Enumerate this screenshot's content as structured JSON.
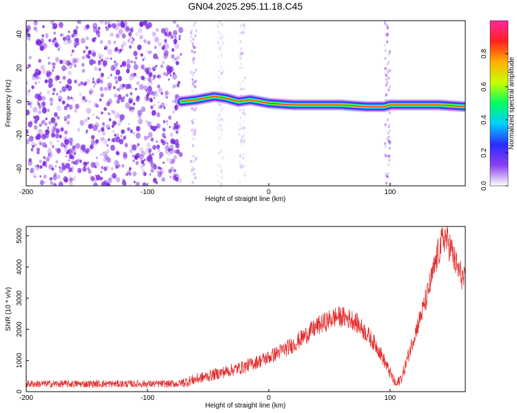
{
  "title": "GN04.2025.295.11.18.C45",
  "colors": {
    "noise": "#7a28e0",
    "line": "#e23030",
    "axis": "#000000"
  },
  "chart_data": [
    {
      "type": "heatmap",
      "xlabel": "Height of straight line (km)",
      "ylabel": "Frequency (Hz)",
      "xlim": [
        -200,
        162
      ],
      "ylim": [
        -50,
        48
      ],
      "xticks": [
        "-200",
        "-100",
        "0",
        "100"
      ],
      "yticks": [
        "40",
        "20",
        "0",
        "-20",
        "-40"
      ],
      "colorbar": {
        "label": "Normalized spectral amplitude",
        "range": [
          0,
          1
        ],
        "ticks": [
          "0.0",
          "0.2",
          "0.4",
          "0.6",
          "0.8"
        ],
        "colors": [
          "#ffffff",
          "#8a3ff0",
          "#2b2bff",
          "#00d0ff",
          "#00ff60",
          "#c8ff00",
          "#ffb000",
          "#ff2020",
          "#ff2aa0"
        ]
      },
      "noise_region_x": [
        -200,
        -72
      ],
      "signal_track": [
        {
          "x": -72,
          "f": 0
        },
        {
          "x": -60,
          "f": 1
        },
        {
          "x": -45,
          "f": 3
        },
        {
          "x": -35,
          "f": 2
        },
        {
          "x": -25,
          "f": 0
        },
        {
          "x": -15,
          "f": 1
        },
        {
          "x": 0,
          "f": -1
        },
        {
          "x": 20,
          "f": -2
        },
        {
          "x": 40,
          "f": -2
        },
        {
          "x": 60,
          "f": -2
        },
        {
          "x": 80,
          "f": -3
        },
        {
          "x": 95,
          "f": -3
        },
        {
          "x": 100,
          "f": -2
        },
        {
          "x": 120,
          "f": -2
        },
        {
          "x": 140,
          "f": -2
        },
        {
          "x": 162,
          "f": -3
        }
      ]
    },
    {
      "type": "line",
      "xlabel": "Height of straight line (km)",
      "ylabel": "SNR (10 * v/v)",
      "xlim": [
        -200,
        162
      ],
      "ylim": [
        0,
        5300
      ],
      "xticks": [
        "-200",
        "-100",
        "0",
        "100"
      ],
      "yticks": [
        "0",
        "1000",
        "2000",
        "3000",
        "4000",
        "5000"
      ],
      "series": [
        {
          "x": [
            -200,
            -150,
            -100,
            -75,
            -70,
            -60,
            -40,
            -20,
            0,
            20,
            40,
            55,
            60,
            70,
            80,
            90,
            100,
            105,
            110,
            120,
            130,
            140,
            145,
            150,
            155,
            162
          ],
          "y": [
            250,
            250,
            250,
            250,
            300,
            400,
            600,
            800,
            1100,
            1500,
            2100,
            2400,
            2400,
            2300,
            1900,
            1400,
            600,
            200,
            500,
            1800,
            3000,
            4500,
            5000,
            4600,
            4000,
            3500
          ]
        }
      ]
    }
  ]
}
